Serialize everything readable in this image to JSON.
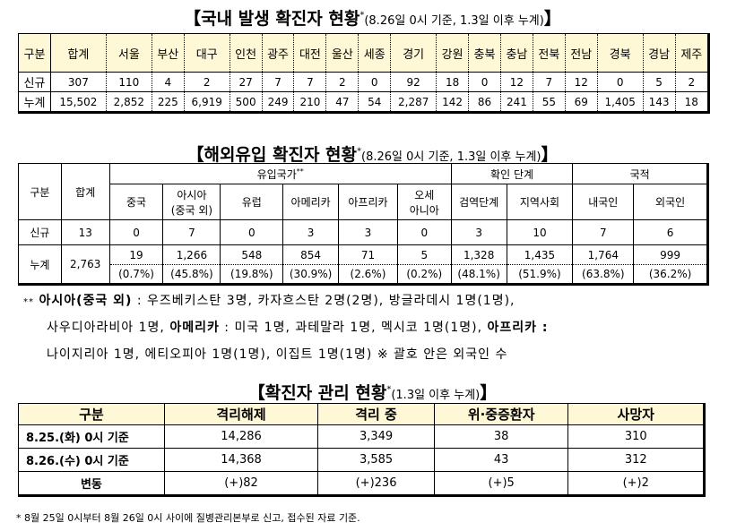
{
  "domestic": {
    "title": "【국내 발생 확진자 현황",
    "star": "*",
    "sub": "(8.26일 0시 기준, 1.3일 이후 누계)",
    "close": "】",
    "headers": [
      "구분",
      "합계",
      "서울",
      "부산",
      "대구",
      "인천",
      "광주",
      "대전",
      "울산",
      "세종",
      "경기",
      "강원",
      "충북",
      "충남",
      "전북",
      "전남",
      "경북",
      "경남",
      "제주"
    ],
    "rows": [
      [
        "신규",
        "307",
        "110",
        "4",
        "2",
        "27",
        "7",
        "7",
        "2",
        "0",
        "92",
        "18",
        "0",
        "12",
        "7",
        "12",
        "0",
        "5",
        "2"
      ],
      [
        "누계",
        "15,502",
        "2,852",
        "225",
        "6,919",
        "500",
        "249",
        "210",
        "47",
        "54",
        "2,287",
        "142",
        "86",
        "241",
        "55",
        "69",
        "1,405",
        "143",
        "18"
      ]
    ]
  },
  "overseas": {
    "title": "【해외유입 확진자 현황",
    "star": "*",
    "sub": "(8.26일 0시 기준, 1.3일 이후 누계)",
    "close": "】",
    "h_gubun": "구분",
    "h_total": "합계",
    "h_origin": "유입국가",
    "h_origin_star": "**",
    "h_stage": "확인 단계",
    "h_nation": "국적",
    "sub_headers": [
      "중국",
      "아시아\n(중국 외)",
      "유럽",
      "아메리카",
      "아프리카",
      "오세\n아니아",
      "검역단계",
      "지역사회",
      "내국인",
      "외국인"
    ],
    "new_label": "신규",
    "new_total": "13",
    "new_values": [
      "0",
      "7",
      "0",
      "3",
      "3",
      "0",
      "3",
      "10",
      "7",
      "6"
    ],
    "cum_label": "누계",
    "cum_total": "2,763",
    "cum_values": [
      "19",
      "1,266",
      "548",
      "854",
      "71",
      "5",
      "1,328",
      "1,435",
      "1,764",
      "999"
    ],
    "cum_pct": [
      "(0.7%)",
      "(45.8%)",
      "(19.8%)",
      "(30.9%)",
      "(2.6%)",
      "(0.2%)",
      "(48.1%)",
      "(51.9%)",
      "(63.8%)",
      "(36.2%)"
    ]
  },
  "notes": {
    "l1_mark": "**",
    "l1_bold": "아시아(중국 외)",
    "l1_text": " : 우즈베키스탄 3명, 카자흐스탄 2명(2명), 방글라데시 1명(1명),",
    "l2_text1": "사우디아라비아 1명, ",
    "l2_bold1": "아메리카",
    "l2_text2": " : 미국 1명, 과테말라 1명, 멕시코 1명(1명), ",
    "l2_bold2": "아프리카 :",
    "l3_text": "나이지리아 1명, 에티오피아 1명(1명), 이집트 1명(1명)    ※ 괄호 안은 외국인 수"
  },
  "management": {
    "title": "【확진자 관리 현황",
    "star": "*",
    "sub": "(1.3일 이후 누계)",
    "close": "】",
    "headers": [
      "구분",
      "격리해제",
      "격리 중",
      "위·중증환자",
      "사망자"
    ],
    "rows": [
      [
        "8.25.(화) 0시 기준",
        "14,286",
        "3,349",
        "38",
        "310"
      ],
      [
        "8.26.(수) 0시 기준",
        "14,368",
        "3,585",
        "43",
        "312"
      ],
      [
        "변동",
        "(+)82",
        "(+)236",
        "(+)5",
        "(+)2"
      ]
    ]
  },
  "footnote": "* 8월 25일 0시부터 8월 26일 0시 사이에 질병관리본부로 신고, 접수된 자료 기준.",
  "colors": {
    "header_bg": "#FFF8D6"
  }
}
